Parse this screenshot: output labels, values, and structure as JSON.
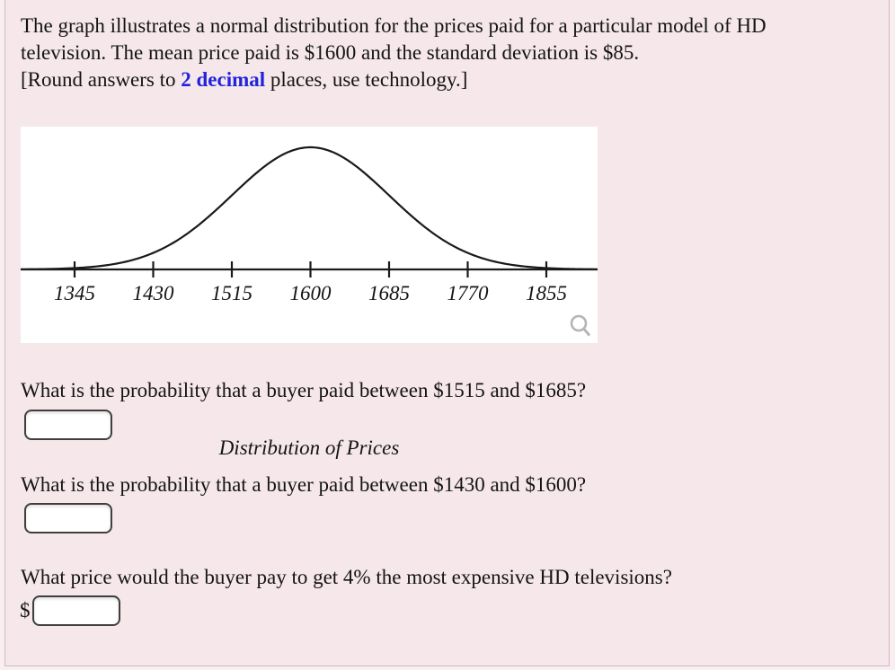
{
  "page": {
    "background_color": "#f5e7ea",
    "outer_background_color": "#f9eff2",
    "border_color": "#cfbac0",
    "text_color": "#141414"
  },
  "intro": {
    "line1": "The graph illustrates a normal distribution for the prices paid for a particular model of HD",
    "line2": "television. The mean price paid is $1600 and the standard deviation is $85.",
    "round_prefix": "[Round answers to ",
    "round_highlight": "2 decimal",
    "round_suffix": " places, use technology.]",
    "highlight_color": "#2222dd"
  },
  "chart_data": {
    "type": "line",
    "subtype": "normal-distribution-bell-curve",
    "title": "Distribution of Prices",
    "mean": 1600,
    "std_dev": 85,
    "x_tick_values": [
      1345,
      1430,
      1515,
      1600,
      1685,
      1770,
      1855
    ],
    "x_tick_labels": [
      "1345",
      "1430",
      "1515",
      "1600",
      "1685",
      "1770",
      "1855"
    ],
    "xlim": [
      1287,
      1910
    ],
    "ylim": [
      0,
      1.06
    ],
    "peak_at_x": 1600,
    "grid": false,
    "legend": null,
    "curve_color": "#1a1a1a",
    "axis_color": "#1a1a1a",
    "plot_background": "#ffffff",
    "icons": {
      "zoom": "magnifier-icon",
      "zoom_color": "#b4b4b4"
    }
  },
  "questions": [
    {
      "text": "What is the probability that a buyer paid between $1515 and $1685?",
      "currency_prefix": "",
      "input_value": ""
    },
    {
      "text": "What is the probability that a buyer paid between $1430 and $1600?",
      "currency_prefix": "",
      "input_value": ""
    },
    {
      "text": "What price would the buyer pay to get 4% the most expensive HD televisions?",
      "currency_prefix": "$",
      "input_value": ""
    }
  ]
}
